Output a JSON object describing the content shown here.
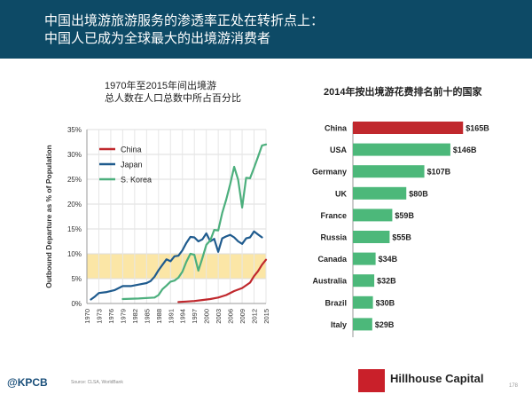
{
  "header": {
    "line1": "中国出境游旅游服务的渗透率正处在转折点上：",
    "line2": "中国人已成为全球最大的出境游消费者"
  },
  "left_title": {
    "line1": "1970年至2015年间出境游",
    "line2": "总人数在人口总数中所占百分比"
  },
  "right_title": "2014年按出境游花费排名前十的国家",
  "footer": {
    "logo": "@KPCB",
    "source": "Source: CLSA, WorldBank",
    "brand": "Hillhouse Capital",
    "page": "178"
  },
  "colors": {
    "header_bg": "#0d4a66",
    "china": "#c0282d",
    "japan": "#1f5b8e",
    "korea": "#4caf7d",
    "highlight": "#fbe6a6"
  },
  "chart_data": [
    {
      "type": "line",
      "title": "1970年至2015年间出境游 总人数在人口总数中所占百分比",
      "ylabel": "Outbound Departure as % of Population",
      "xlabel": "",
      "x": [
        1970,
        1973,
        1976,
        1979,
        1982,
        1985,
        1988,
        1991,
        1994,
        1997,
        2000,
        2003,
        2006,
        2009,
        2012,
        2015
      ],
      "xlim": [
        1970,
        2015
      ],
      "ylim": [
        0,
        35
      ],
      "yticks": [
        "0%",
        "5%",
        "10%",
        "15%",
        "20%",
        "25%",
        "30%",
        "35%"
      ],
      "ytick_values": [
        0,
        5,
        10,
        15,
        20,
        25,
        30,
        35
      ],
      "grid": true,
      "legend": "top-left",
      "highlight_band": [
        5,
        10
      ],
      "series": [
        {
          "name": "China",
          "color": "#c0282d",
          "points": [
            [
              1993,
              0.3
            ],
            [
              1995,
              0.4
            ],
            [
              1997,
              0.5
            ],
            [
              1999,
              0.7
            ],
            [
              2001,
              0.9
            ],
            [
              2003,
              1.2
            ],
            [
              2005,
              1.7
            ],
            [
              2007,
              2.5
            ],
            [
              2009,
              3.1
            ],
            [
              2011,
              4.2
            ],
            [
              2012,
              5.5
            ],
            [
              2013,
              6.5
            ],
            [
              2014,
              7.8
            ],
            [
              2015,
              8.8
            ]
          ]
        },
        {
          "name": "Japan",
          "color": "#1f5b8e",
          "points": [
            [
              1971,
              0.8
            ],
            [
              1972,
              1.4
            ],
            [
              1973,
              2.1
            ],
            [
              1975,
              2.3
            ],
            [
              1977,
              2.7
            ],
            [
              1979,
              3.5
            ],
            [
              1981,
              3.5
            ],
            [
              1983,
              3.8
            ],
            [
              1985,
              4.1
            ],
            [
              1986,
              4.5
            ],
            [
              1987,
              5.4
            ],
            [
              1988,
              6.7
            ],
            [
              1989,
              7.8
            ],
            [
              1990,
              8.9
            ],
            [
              1991,
              8.5
            ],
            [
              1992,
              9.5
            ],
            [
              1993,
              9.6
            ],
            [
              1994,
              10.7
            ],
            [
              1995,
              12.2
            ],
            [
              1996,
              13.4
            ],
            [
              1997,
              13.3
            ],
            [
              1998,
              12.5
            ],
            [
              1999,
              12.9
            ],
            [
              2000,
              14.1
            ],
            [
              2001,
              12.5
            ],
            [
              2002,
              13.0
            ],
            [
              2003,
              10.4
            ],
            [
              2004,
              13.1
            ],
            [
              2005,
              13.5
            ],
            [
              2006,
              13.8
            ],
            [
              2007,
              13.3
            ],
            [
              2008,
              12.5
            ],
            [
              2009,
              12.0
            ],
            [
              2010,
              13.1
            ],
            [
              2011,
              13.3
            ],
            [
              2012,
              14.5
            ],
            [
              2013,
              13.9
            ],
            [
              2014,
              13.3
            ]
          ]
        },
        {
          "name": "S. Korea",
          "color": "#4caf7d",
          "points": [
            [
              1979,
              0.9
            ],
            [
              1983,
              1.0
            ],
            [
              1987,
              1.2
            ],
            [
              1988,
              1.7
            ],
            [
              1989,
              2.9
            ],
            [
              1990,
              3.6
            ],
            [
              1991,
              4.4
            ],
            [
              1992,
              4.6
            ],
            [
              1993,
              5.2
            ],
            [
              1994,
              6.4
            ],
            [
              1995,
              8.4
            ],
            [
              1996,
              10.0
            ],
            [
              1997,
              9.8
            ],
            [
              1998,
              6.6
            ],
            [
              1999,
              9.1
            ],
            [
              2000,
              11.8
            ],
            [
              2001,
              12.7
            ],
            [
              2002,
              14.8
            ],
            [
              2003,
              14.7
            ],
            [
              2004,
              18.2
            ],
            [
              2005,
              20.9
            ],
            [
              2006,
              24.0
            ],
            [
              2007,
              27.5
            ],
            [
              2008,
              24.9
            ],
            [
              2009,
              19.3
            ],
            [
              2010,
              25.3
            ],
            [
              2011,
              25.2
            ],
            [
              2012,
              27.3
            ],
            [
              2013,
              29.5
            ],
            [
              2014,
              31.8
            ],
            [
              2015,
              32.0
            ]
          ]
        }
      ]
    },
    {
      "type": "bar",
      "orientation": "horizontal",
      "title": "2014年按出境游花费排名前十的国家",
      "categories": [
        "China",
        "USA",
        "Germany",
        "UK",
        "France",
        "Russia",
        "Canada",
        "Australia",
        "Brazil",
        "Italy"
      ],
      "values": [
        165,
        146,
        107,
        80,
        59,
        55,
        34,
        32,
        30,
        29
      ],
      "value_labels": [
        "$165B",
        "$146B",
        "$107B",
        "$80B",
        "$59B",
        "$55B",
        "$34B",
        "$32B",
        "$30B",
        "$29B"
      ],
      "unit": "USD billions",
      "xlim": [
        0,
        170
      ],
      "colors": {
        "China": "#c0282d",
        "default": "#4cb87a"
      }
    }
  ]
}
